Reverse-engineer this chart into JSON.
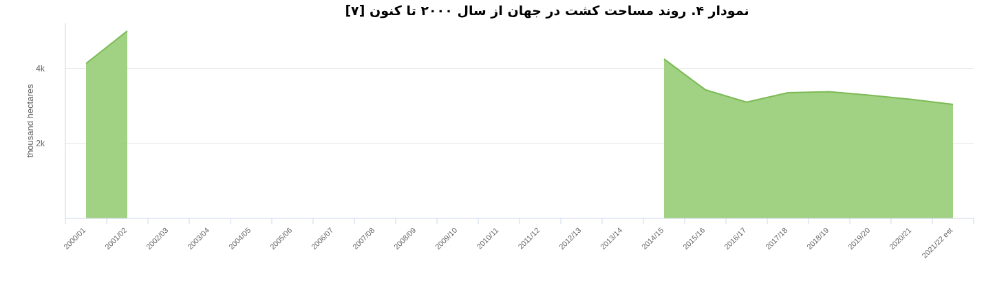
{
  "chart_data": {
    "type": "area",
    "title": "نمودار ۴. روند مساحت کشت در جهان از سال ۲۰۰۰ تا کنون [۷]",
    "ylabel": "thousand hectares",
    "categories": [
      "2000/01",
      "2001/02",
      "2002/03",
      "2003/04",
      "2004/05",
      "2005/06",
      "2006/07",
      "2007/08",
      "2008/09",
      "2009/10",
      "2010/11",
      "2011/12",
      "2012/13",
      "2013/14",
      "2014/15",
      "2015/16",
      "2016/17",
      "2017/18",
      "2018/19",
      "2019/20",
      "2020/21",
      "2021/22 est"
    ],
    "series": [
      {
        "color": "#9ccf7b",
        "values": [
          4130,
          5000,
          null,
          null,
          null,
          null,
          null,
          null,
          null,
          null,
          null,
          null,
          null,
          null,
          4250,
          3430,
          3100,
          3350,
          3380,
          3280,
          3170,
          3040
        ]
      }
    ],
    "ylim": [
      0,
      5200
    ],
    "yticks": [
      {
        "value": 2000,
        "label": "2k"
      },
      {
        "value": 4000,
        "label": "4k"
      }
    ],
    "grid": "y"
  }
}
